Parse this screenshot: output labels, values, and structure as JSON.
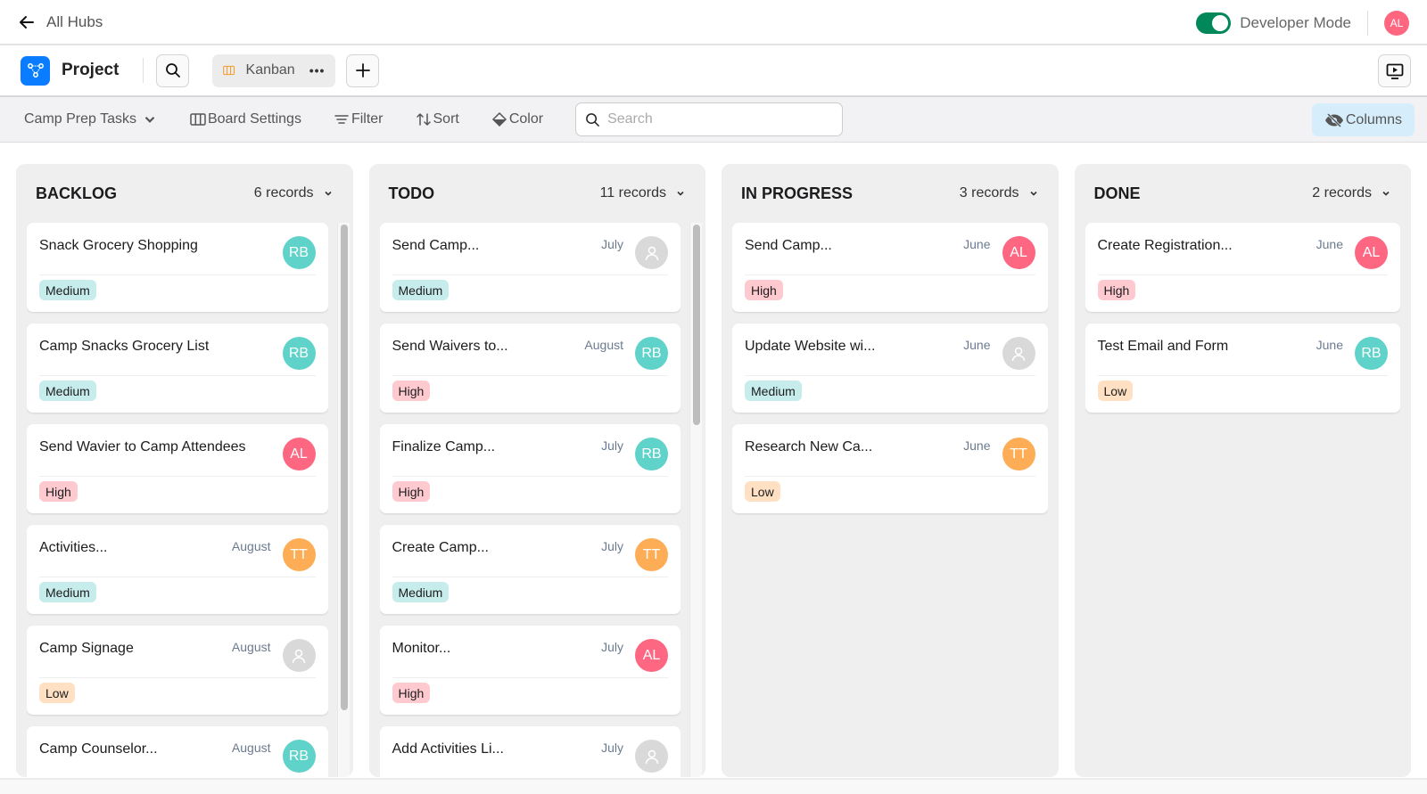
{
  "topbar": {
    "back_label": "All Hubs",
    "developer_mode_label": "Developer Mode",
    "developer_mode_on": true,
    "user_initials": "AL",
    "user_color": "#ff6680"
  },
  "projectbar": {
    "project_name": "Project",
    "view_name": "Kanban",
    "view_menu": "•••",
    "brand_color": "#0a7cff"
  },
  "toolbar": {
    "table_selector": "Camp Prep Tasks",
    "board_settings": "Board Settings",
    "filter": "Filter",
    "sort": "Sort",
    "color": "Color",
    "search_placeholder": "Search",
    "search_value": "",
    "columns": "Columns"
  },
  "colors": {
    "RB": "#5fd3c9",
    "AL": "#fd6782",
    "TT": "#fdad56",
    "none": "#d9d9d9",
    "Medium": "#c7ecec",
    "High": "#ffc9d0",
    "Low": "#ffe0c2"
  },
  "board": {
    "columns": [
      {
        "title": "BACKLOG",
        "count": "6 records",
        "cards": [
          {
            "title": "Snack Grocery Shopping",
            "date": "",
            "assignee": "RB",
            "priority": "Medium"
          },
          {
            "title": "Camp Snacks Grocery List",
            "date": "",
            "assignee": "RB",
            "priority": "Medium"
          },
          {
            "title": "Send Wavier to Camp Attendees",
            "date": "",
            "assignee": "AL",
            "priority": "High"
          },
          {
            "title": "Activities...",
            "date": "August",
            "assignee": "TT",
            "priority": "Medium"
          },
          {
            "title": "Camp Signage",
            "date": "August",
            "assignee": "",
            "priority": "Low"
          },
          {
            "title": "Camp Counselor...",
            "date": "August",
            "assignee": "RB",
            "priority": ""
          }
        ]
      },
      {
        "title": "TODO",
        "count": "11 records",
        "cards": [
          {
            "title": "Send Camp...",
            "date": "July",
            "assignee": "",
            "priority": "Medium"
          },
          {
            "title": "Send Waivers to...",
            "date": "August",
            "assignee": "RB",
            "priority": "High"
          },
          {
            "title": "Finalize Camp...",
            "date": "July",
            "assignee": "RB",
            "priority": "High"
          },
          {
            "title": "Create Camp...",
            "date": "July",
            "assignee": "TT",
            "priority": "Medium"
          },
          {
            "title": "Monitor...",
            "date": "July",
            "assignee": "AL",
            "priority": "High"
          },
          {
            "title": "Add Activities Li...",
            "date": "July",
            "assignee": "",
            "priority": ""
          }
        ]
      },
      {
        "title": "IN PROGRESS",
        "count": "3 records",
        "cards": [
          {
            "title": "Send Camp...",
            "date": "June",
            "assignee": "AL",
            "priority": "High"
          },
          {
            "title": "Update Website wi...",
            "date": "June",
            "assignee": "",
            "priority": "Medium"
          },
          {
            "title": "Research New Ca...",
            "date": "June",
            "assignee": "TT",
            "priority": "Low"
          }
        ]
      },
      {
        "title": "DONE",
        "count": "2 records",
        "cards": [
          {
            "title": "Create Registration...",
            "date": "June",
            "assignee": "AL",
            "priority": "High"
          },
          {
            "title": "Test Email and Form",
            "date": "June",
            "assignee": "RB",
            "priority": "Low"
          }
        ]
      }
    ]
  }
}
